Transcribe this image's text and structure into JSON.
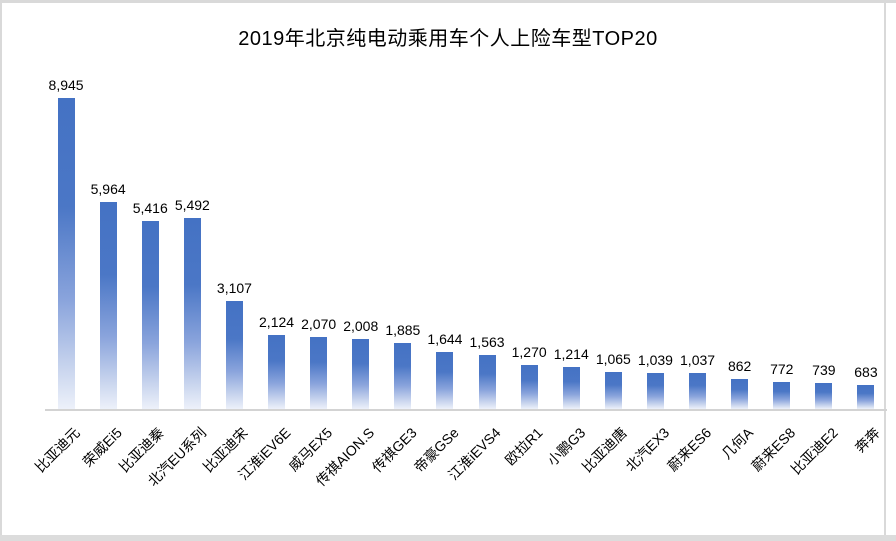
{
  "chart_data": {
    "type": "bar",
    "title": "2019年北京纯电动乘用车个人上险车型TOP20",
    "categories": [
      "比亚迪元",
      "荣威Ei5",
      "比亚迪秦",
      "北汽EU系列",
      "比亚迪宋",
      "江淮iEV6E",
      "威马EX5",
      "传祺AION.S",
      "传祺GE3",
      "帝豪GSe",
      "江淮iEVS4",
      "欧拉R1",
      "小鹏G3",
      "比亚迪唐",
      "北汽EX3",
      "蔚来ES6",
      "几何A",
      "蔚来ES8",
      "比亚迪E2",
      "奔奔"
    ],
    "values": [
      8945,
      5964,
      5416,
      5492,
      3107,
      2124,
      2070,
      2008,
      1885,
      1644,
      1563,
      1270,
      1214,
      1065,
      1039,
      1037,
      862,
      772,
      739,
      683
    ],
    "value_labels": [
      "8,945",
      "5,964",
      "5,416",
      "5,492",
      "3,107",
      "2,124",
      "2,070",
      "2,008",
      "1,885",
      "1,644",
      "1,563",
      "1,270",
      "1,214",
      "1,065",
      "1,039",
      "1,037",
      "862",
      "772",
      "739",
      "683"
    ],
    "xlabel": "",
    "ylabel": "",
    "ylim": [
      0,
      8945
    ],
    "grid": false,
    "legend": "none",
    "label_rotation_deg": -45,
    "colors": {
      "bar_top": "#4472C4",
      "bar_mid": "#8AA4DC",
      "bar_bottom_fade": "#EDF1FA",
      "axis_line": "#D3D3D3",
      "frame_border": "#D9D9D9",
      "text": "#000000",
      "background": "#FFFFFF"
    }
  }
}
